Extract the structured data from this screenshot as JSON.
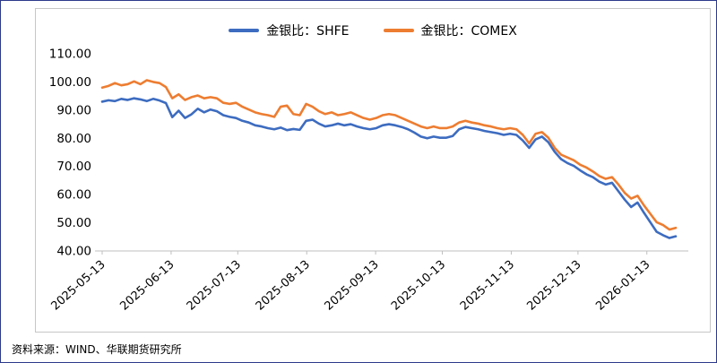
{
  "source": "资料来源：WIND、华联期货研究所",
  "colors": {
    "page_border": "#2e3a8c",
    "card_border": "#c6c6c6",
    "axis": "#bfbfbf",
    "tick_text": "#000000",
    "shfe_blue": "#3d6cc0",
    "comex_orange": "#ed7d31"
  },
  "chart_data": {
    "type": "line",
    "title": "",
    "xlabel": "",
    "ylabel": "",
    "grid": false,
    "legend_position": "top",
    "ylim": [
      40,
      110
    ],
    "yticks": [
      {
        "value": 110,
        "label": "110.00"
      },
      {
        "value": 100,
        "label": "100.00"
      },
      {
        "value": 90,
        "label": "90.00"
      },
      {
        "value": 80,
        "label": "80.00"
      },
      {
        "value": 70,
        "label": "70.00"
      },
      {
        "value": 60,
        "label": "60.00"
      },
      {
        "value": 50,
        "label": "50.00"
      },
      {
        "value": 40,
        "label": "40.00"
      }
    ],
    "xticks": [
      {
        "pos": 0.0,
        "label": "2025-05-13"
      },
      {
        "pos": 0.1202,
        "label": "2025-06-13"
      },
      {
        "pos": 0.2364,
        "label": "2025-07-13"
      },
      {
        "pos": 0.3566,
        "label": "2025-08-13"
      },
      {
        "pos": 0.4767,
        "label": "2025-09-13"
      },
      {
        "pos": 0.593,
        "label": "2025-10-13"
      },
      {
        "pos": 0.7132,
        "label": "2025-11-13"
      },
      {
        "pos": 0.8295,
        "label": "2025-12-13"
      },
      {
        "pos": 0.9496,
        "label": "2026-01-13"
      }
    ],
    "series": [
      {
        "name": "金银比：SHFE",
        "color": "#3d6cc0",
        "values": [
          93.0,
          93.5,
          93.2,
          94.0,
          93.6,
          94.2,
          93.8,
          93.2,
          94.0,
          93.4,
          92.5,
          87.5,
          89.8,
          87.2,
          88.5,
          90.5,
          89.2,
          90.2,
          89.6,
          88.2,
          87.6,
          87.2,
          86.2,
          85.6,
          84.6,
          84.2,
          83.6,
          83.2,
          83.8,
          82.9,
          83.3,
          83.0,
          86.2,
          86.6,
          85.2,
          84.2,
          84.6,
          85.2,
          84.6,
          85.0,
          84.2,
          83.6,
          83.2,
          83.6,
          84.6,
          85.0,
          84.6,
          84.0,
          83.2,
          82.0,
          80.6,
          80.0,
          80.6,
          80.2,
          80.2,
          80.8,
          83.2,
          84.0,
          83.6,
          83.2,
          82.6,
          82.2,
          81.8,
          81.2,
          81.6,
          81.2,
          79.2,
          76.6,
          79.6,
          80.6,
          78.6,
          75.2,
          72.6,
          71.2,
          70.2,
          68.6,
          67.2,
          66.2,
          64.6,
          63.6,
          64.2,
          61.2,
          58.2,
          55.6,
          57.2,
          53.6,
          50.2,
          46.8,
          45.6,
          44.6,
          45.2
        ]
      },
      {
        "name": "金银比：COMEX",
        "color": "#ed7d31",
        "values": [
          98.0,
          98.6,
          99.6,
          98.8,
          99.2,
          100.2,
          99.2,
          100.6,
          100.0,
          99.6,
          98.2,
          94.2,
          95.6,
          93.6,
          94.6,
          95.2,
          94.2,
          94.6,
          94.2,
          92.6,
          92.2,
          92.6,
          91.2,
          90.2,
          89.2,
          88.6,
          88.2,
          87.6,
          91.2,
          91.6,
          88.6,
          88.2,
          92.2,
          91.2,
          89.6,
          88.6,
          89.2,
          88.2,
          88.6,
          89.2,
          88.2,
          87.2,
          86.6,
          87.2,
          88.2,
          88.6,
          88.2,
          87.2,
          86.2,
          85.2,
          84.2,
          83.6,
          84.2,
          83.6,
          83.6,
          84.2,
          85.6,
          86.2,
          85.6,
          85.2,
          84.6,
          84.2,
          83.6,
          83.2,
          83.6,
          83.2,
          81.2,
          78.2,
          81.6,
          82.2,
          80.2,
          76.6,
          74.2,
          73.2,
          72.2,
          70.6,
          69.6,
          68.2,
          66.6,
          65.6,
          66.2,
          63.6,
          60.6,
          58.6,
          59.6,
          56.2,
          53.2,
          50.2,
          49.2,
          47.6,
          48.2
        ]
      }
    ]
  }
}
